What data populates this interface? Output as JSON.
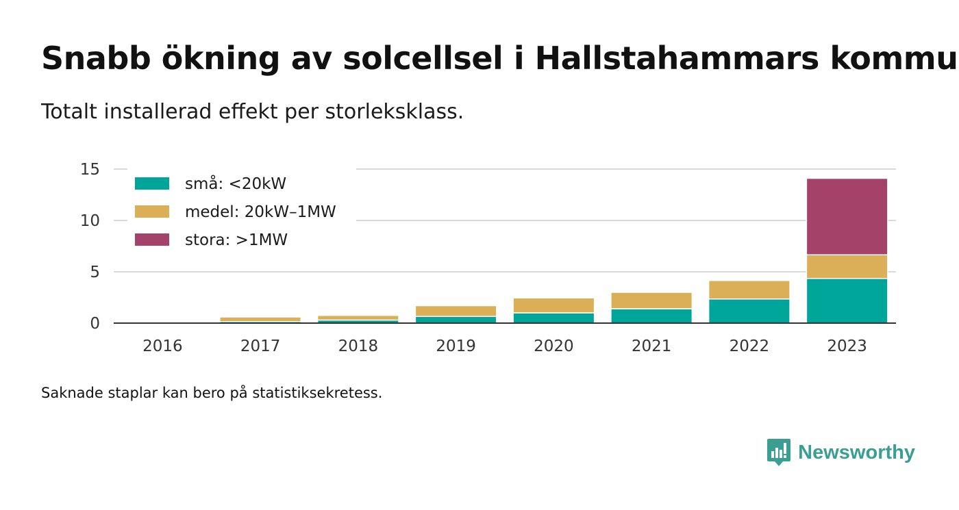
{
  "title": "Snabb ökning av solcellsel i Hallstahammars kommun",
  "subtitle": "Totalt installerad effekt per storleksklass.",
  "footnote": "Saknade staplar kan bero på statistiksekretess.",
  "brand": {
    "name": "Newsworthy",
    "icon": "newsworthy-logo-icon"
  },
  "chart_data": {
    "type": "bar",
    "stacked": true,
    "categories": [
      "2016",
      "2017",
      "2018",
      "2019",
      "2020",
      "2021",
      "2022",
      "2023"
    ],
    "series": [
      {
        "name": "små: <20kW",
        "color": "#00a59a",
        "values": [
          0.03,
          0.15,
          0.3,
          0.65,
          1.0,
          1.4,
          2.35,
          4.35
        ]
      },
      {
        "name": "medel: 20kW–1MW",
        "color": "#dbae58",
        "values": [
          0.0,
          0.45,
          0.45,
          1.05,
          1.45,
          1.6,
          1.8,
          2.3
        ]
      },
      {
        "name": "stora: >1MW",
        "color": "#a5426a",
        "values": [
          0,
          0,
          0,
          0,
          0,
          0,
          0,
          7.45
        ]
      }
    ],
    "ylim": [
      0,
      15
    ],
    "yticks": [
      0,
      5,
      10,
      15
    ],
    "grid": true,
    "legend": "top-left"
  }
}
